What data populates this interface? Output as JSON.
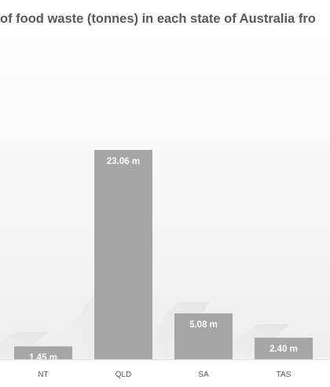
{
  "chart_data": {
    "type": "bar",
    "title": "of food waste (tonnes) in each state of Australia fro",
    "categories": [
      "NT",
      "QLD",
      "SA",
      "TAS"
    ],
    "values": [
      1.45,
      23.06,
      5.08,
      2.4
    ],
    "data_labels": [
      "1.45 m",
      "23.06 m",
      "5.08 m",
      "2.40 m"
    ],
    "ylim": [
      0,
      23.06
    ],
    "grid": false,
    "bar_color": "#a6a6a6",
    "label_color": "#ffffff",
    "tick_color": "#595959"
  }
}
